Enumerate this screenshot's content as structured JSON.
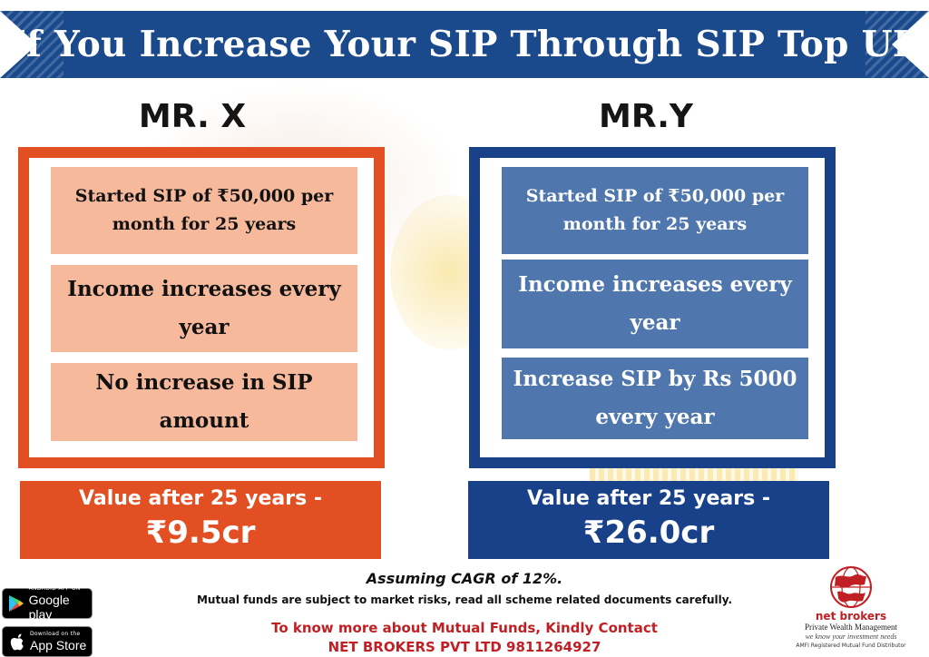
{
  "banner": {
    "title": "If You Increase Your SIP Through SIP Top UP"
  },
  "mr_x": {
    "name": "MR. X",
    "cards": [
      "Started SIP of ₹50,000 per month for 25 years",
      "Income increases every year",
      "No increase in SIP amount"
    ],
    "value_label": "Value after 25 years -",
    "value_amount": "₹9.5cr"
  },
  "mr_y": {
    "name": "MR.Y",
    "cards": [
      "Started SIP of ₹50,000 per month for 25 years",
      "Income increases every year",
      "Increase SIP by Rs 5000 every year"
    ],
    "value_label": "Value after 25 years -",
    "value_amount": "₹26.0cr"
  },
  "footer": {
    "cagr": "Assuming CAGR of 12%.",
    "disclaimer": "Mutual funds are subject to market risks, read all scheme related documents carefully.",
    "contact": "To know more about Mutual Funds, Kindly Contact",
    "company": "NET BROKERS PVT LTD  9811264927"
  },
  "badges": {
    "google_small": "ANDROID APP ON",
    "google_big": "Google play",
    "apple_small": "Download on the",
    "apple_big": "App Store"
  },
  "logo": {
    "name": "net brokers",
    "subtitle": "Private Wealth Management",
    "tagline": "we know your investment needs",
    "amfi": "AMFI Registered Mutual Fund Distributor"
  },
  "colors": {
    "orange": "#e24f22",
    "navy": "#18418a",
    "banner": "#1a4a8c",
    "red_text": "#c01f23"
  }
}
